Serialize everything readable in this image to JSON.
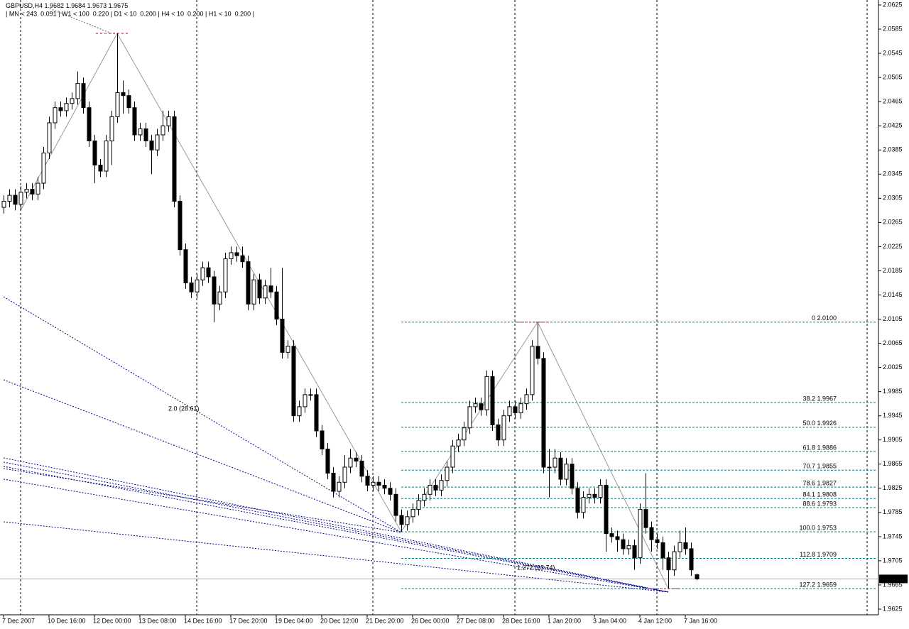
{
  "chart_data": {
    "type": "candlestick",
    "symbol": "GBPUSD,H4",
    "info": "| MN < 243  0.091 | W1 < 100  0.220 | D1 < 10  0.200 | H4 < 10  0.200 | H1 < 10  0.200 |",
    "up_color": "#ffffff",
    "down_color": "#000000",
    "categories": [
      "7 Dec 2007",
      null,
      null,
      null,
      null,
      null,
      null,
      null,
      "10 Dec 16:00",
      null,
      null,
      null,
      null,
      null,
      null,
      null,
      "12 Dec 00:00",
      null,
      null,
      null,
      null,
      null,
      null,
      null,
      "13 Dec 08:00",
      null,
      null,
      null,
      null,
      null,
      null,
      null,
      "14 Dec 16:00",
      null,
      null,
      null,
      null,
      null,
      null,
      null,
      "17 Dec 20:00",
      null,
      null,
      null,
      null,
      null,
      null,
      null,
      "19 Dec 04:00",
      null,
      null,
      null,
      null,
      null,
      null,
      null,
      "20 Dec 12:00",
      null,
      null,
      null,
      null,
      null,
      null,
      null,
      "21 Dec 20:00",
      null,
      null,
      null,
      null,
      null,
      null,
      null,
      "26 Dec 00:00",
      null,
      null,
      null,
      null,
      null,
      null,
      null,
      "27 Dec 08:00",
      null,
      null,
      null,
      null,
      null,
      null,
      null,
      "28 Dec 16:00",
      null,
      null,
      null,
      null,
      null,
      null,
      null,
      "1 Jan 20:00",
      null,
      null,
      null,
      null,
      null,
      null,
      null,
      "3 Jan 04:00",
      null,
      null,
      null,
      null,
      null,
      null,
      null,
      "4 Jan 12:00",
      null,
      null,
      null,
      null,
      null,
      null,
      null,
      "7 Jan 16:00",
      null,
      null
    ],
    "open": [
      2.029,
      2.03,
      2.031,
      2.0295,
      2.0315,
      2.032,
      2.0312,
      2.033,
      2.038,
      2.043,
      2.0455,
      2.045,
      2.0462,
      2.047,
      2.0495,
      2.0455,
      2.04,
      2.036,
      2.035,
      2.04,
      2.044,
      2.048,
      2.0475,
      2.0455,
      2.041,
      2.042,
      2.04,
      2.0385,
      2.041,
      2.0425,
      2.044,
      2.03,
      2.022,
      2.0165,
      2.015,
      2.017,
      2.019,
      2.0175,
      2.013,
      2.015,
      2.0205,
      2.0215,
      2.021,
      2.02,
      2.013,
      2.017,
      2.014,
      2.016,
      2.015,
      2.0105,
      2.005,
      2.006,
      1.9945,
      1.996,
      1.998,
      1.998,
      1.992,
      1.989,
      1.985,
      1.982,
      1.9835,
      1.986,
      1.9875,
      1.987,
      1.9845,
      1.983,
      1.9835,
      1.983,
      1.9825,
      1.9815,
      1.978,
      1.9765,
      1.9778,
      1.979,
      1.9805,
      1.9815,
      1.983,
      1.9822,
      1.9838,
      1.986,
      1.9895,
      1.9905,
      1.9925,
      1.996,
      1.9965,
      1.9955,
      2.001,
      1.993,
      1.9905,
      1.9945,
      1.996,
      1.995,
      1.9965,
      1.998,
      2.006,
      2.004,
      1.986,
      1.986,
      1.9875,
      1.984,
      1.9865,
      1.9825,
      1.9785,
      1.981,
      1.9815,
      1.981,
      1.983,
      1.975,
      1.9745,
      1.974,
      1.9725,
      1.973,
      1.971,
      1.979,
      1.976,
      1.974,
      1.9735,
      1.971,
      1.969,
      1.972,
      1.9735,
      1.9725,
      1.9682
    ],
    "high": [
      2.031,
      2.032,
      2.032,
      2.0325,
      2.033,
      2.033,
      2.034,
      2.039,
      2.044,
      2.0465,
      2.0465,
      2.0472,
      2.048,
      2.0515,
      2.0505,
      2.0465,
      2.041,
      2.037,
      2.041,
      2.045,
      2.0578,
      2.05,
      2.0485,
      2.0465,
      2.043,
      2.043,
      2.041,
      2.042,
      2.045,
      2.045,
      2.045,
      2.031,
      2.023,
      2.0175,
      2.018,
      2.02,
      2.02,
      2.0185,
      2.016,
      2.0215,
      2.0225,
      2.0225,
      2.0225,
      2.021,
      2.018,
      2.018,
      2.017,
      2.019,
      2.016,
      2.019,
      2.007,
      2.007,
      1.997,
      1.999,
      1.999,
      1.999,
      1.993,
      1.99,
      1.986,
      1.9845,
      1.988,
      1.989,
      1.9885,
      1.988,
      1.9855,
      1.9845,
      1.9845,
      1.984,
      1.9835,
      1.9825,
      1.979,
      1.9788,
      1.98,
      1.9815,
      1.9825,
      1.984,
      1.984,
      1.9848,
      1.987,
      1.9905,
      1.9915,
      1.9935,
      1.997,
      1.9975,
      1.9975,
      2.002,
      2.002,
      1.994,
      1.9955,
      1.997,
      1.997,
      1.9975,
      1.999,
      2.007,
      2.01,
      2.005,
      1.989,
      1.989,
      1.9885,
      1.9875,
      1.9875,
      1.9835,
      1.982,
      1.9825,
      1.9825,
      1.984,
      1.984,
      1.976,
      1.9755,
      1.975,
      1.974,
      1.974,
      1.98,
      1.985,
      1.977,
      1.975,
      1.9745,
      1.972,
      1.973,
      1.9755,
      1.976,
      1.9735,
      1.9684
    ],
    "low": [
      2.028,
      2.029,
      2.0285,
      2.0285,
      2.0305,
      2.0302,
      2.0302,
      2.032,
      2.037,
      2.042,
      2.044,
      2.044,
      2.0452,
      2.046,
      2.0445,
      2.039,
      2.033,
      2.034,
      2.034,
      2.036,
      2.043,
      2.0445,
      2.0445,
      2.04,
      2.04,
      2.039,
      2.0345,
      2.0375,
      2.04,
      2.0415,
      2.029,
      2.021,
      2.0155,
      2.014,
      2.014,
      2.016,
      2.0165,
      2.01,
      2.012,
      2.014,
      2.0195,
      2.02,
      2.019,
      2.012,
      2.012,
      2.013,
      2.013,
      2.014,
      2.0095,
      2.004,
      2.004,
      1.9935,
      1.9935,
      1.995,
      1.997,
      1.991,
      1.988,
      1.984,
      1.981,
      1.981,
      1.9825,
      1.985,
      1.986,
      1.9835,
      1.982,
      1.982,
      1.982,
      1.9815,
      1.9805,
      1.977,
      1.9753,
      1.9755,
      1.9768,
      1.978,
      1.9795,
      1.9805,
      1.9812,
      1.9812,
      1.9828,
      1.985,
      1.9885,
      1.9895,
      1.9915,
      1.995,
      1.9945,
      1.9945,
      1.992,
      1.9895,
      1.9895,
      1.9935,
      1.994,
      1.994,
      1.9955,
      1.997,
      2.003,
      1.985,
      1.981,
      1.985,
      1.983,
      1.983,
      1.9815,
      1.9775,
      1.9775,
      1.98,
      1.98,
      1.98,
      1.972,
      1.9735,
      1.972,
      1.9715,
      1.9715,
      1.969,
      1.97,
      1.975,
      1.972,
      1.9725,
      1.969,
      1.9659,
      1.968,
      1.971,
      1.9715,
      1.968,
      1.9673
    ],
    "close": [
      2.03,
      2.031,
      2.0295,
      2.0315,
      2.032,
      2.0312,
      2.033,
      2.038,
      2.043,
      2.0455,
      2.045,
      2.0462,
      2.047,
      2.0495,
      2.0455,
      2.04,
      2.036,
      2.035,
      2.04,
      2.044,
      2.048,
      2.0475,
      2.0455,
      2.041,
      2.042,
      2.04,
      2.0385,
      2.041,
      2.0425,
      2.044,
      2.03,
      2.022,
      2.0165,
      2.015,
      2.017,
      2.019,
      2.0175,
      2.013,
      2.015,
      2.0205,
      2.0215,
      2.021,
      2.02,
      2.013,
      2.017,
      2.014,
      2.016,
      2.015,
      2.0105,
      2.005,
      2.006,
      1.9945,
      1.996,
      1.998,
      1.998,
      1.992,
      1.989,
      1.985,
      1.982,
      1.9835,
      1.986,
      1.9875,
      1.987,
      1.9845,
      1.983,
      1.9835,
      1.983,
      1.9825,
      1.9815,
      1.978,
      1.9765,
      1.9778,
      1.979,
      1.9805,
      1.9815,
      1.983,
      1.9822,
      1.9838,
      1.986,
      1.9895,
      1.9905,
      1.9925,
      1.996,
      1.9965,
      1.9955,
      2.001,
      1.993,
      1.9905,
      1.9945,
      1.996,
      1.995,
      1.9965,
      1.998,
      2.006,
      2.004,
      1.986,
      1.986,
      1.9875,
      1.984,
      1.9865,
      1.9825,
      1.9785,
      1.981,
      1.9815,
      1.981,
      1.983,
      1.975,
      1.9745,
      1.974,
      1.9725,
      1.973,
      1.971,
      1.979,
      1.976,
      1.974,
      1.9735,
      1.971,
      1.969,
      1.972,
      1.9735,
      1.9725,
      1.969,
      1.9675
    ],
    "ylim": [
      1.9625,
      2.0625
    ],
    "yticks": [
      2.0625,
      2.0585,
      2.0545,
      2.0505,
      2.0465,
      2.0425,
      2.0385,
      2.0345,
      2.0305,
      2.0265,
      2.0225,
      2.0185,
      2.0145,
      2.0105,
      2.0065,
      2.0025,
      1.9985,
      1.9945,
      1.9905,
      1.9865,
      1.9825,
      1.9785,
      1.9745,
      1.9705,
      1.9665,
      1.9625
    ],
    "fibo": {
      "color": "#008080",
      "levels": [
        {
          "value": 2.01,
          "label": "0  2.0100"
        },
        {
          "value": 1.9967,
          "label": "38.2  1.9967"
        },
        {
          "value": 1.9926,
          "label": "50.0  1.9926"
        },
        {
          "value": 1.9886,
          "label": "61.8  1.9886"
        },
        {
          "value": 1.9855,
          "label": "70.7  1.9855"
        },
        {
          "value": 1.9827,
          "label": "78.6  1.9827"
        },
        {
          "value": 1.9808,
          "label": "84.1  1.9808"
        },
        {
          "value": 1.9793,
          "label": "88.6  1.9793"
        },
        {
          "value": 1.9753,
          "label": "100.0  1.9753"
        },
        {
          "value": 1.9709,
          "label": "112.8  1.9709"
        },
        {
          "value": 1.9659,
          "label": "127.2  1.9659"
        }
      ]
    },
    "annotations": [
      "2.0 (28.61)",
      "1.272 (23.74)"
    ]
  }
}
